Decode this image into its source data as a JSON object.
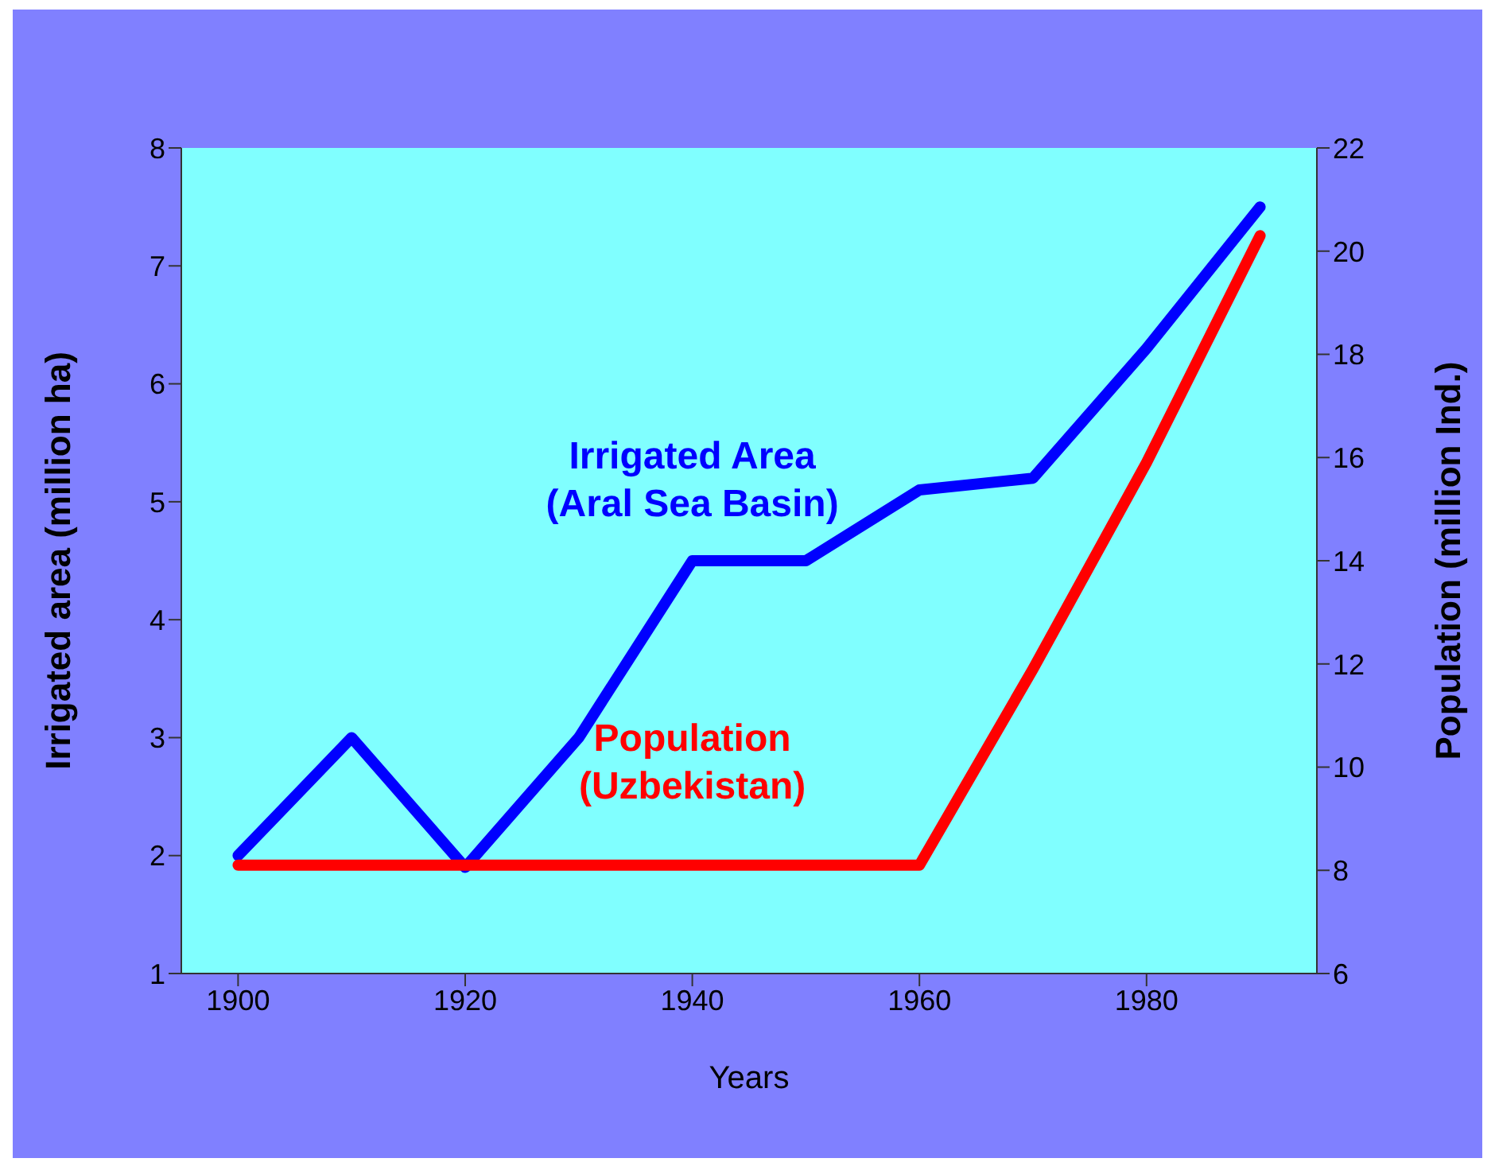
{
  "chart_data": {
    "type": "line",
    "xlabel": "Years",
    "ylabel": "Irrigated area (million ha)",
    "y2label": "Population (million Ind.)",
    "x": [
      1900,
      1910,
      1920,
      1930,
      1940,
      1950,
      1960,
      1970,
      1980,
      1990
    ],
    "series": [
      {
        "name": "Irrigated Area (Aral Sea Basin)",
        "color": "#0000ff",
        "values": [
          2.0,
          3.0,
          1.9,
          3.0,
          4.5,
          4.5,
          5.1,
          5.2,
          6.3,
          7.5
        ]
      },
      {
        "name": "Population (Uzbekistan)",
        "color": "#ff0000",
        "axis": "y2",
        "values": [
          8.1,
          8.1,
          8.1,
          8.1,
          8.1,
          8.1,
          8.1,
          11.9,
          15.9,
          20.3
        ]
      }
    ],
    "xlim": [
      1895,
      1995
    ],
    "xticks": [
      1900,
      1920,
      1940,
      1960,
      1980
    ],
    "ylim": [
      1,
      8
    ],
    "yticks": [
      1,
      2,
      3,
      4,
      5,
      6,
      7,
      8
    ],
    "y2lim": [
      6,
      22
    ],
    "y2ticks": [
      6,
      8,
      10,
      12,
      14,
      16,
      18,
      20,
      22
    ],
    "grid": false,
    "legend": false,
    "marker": "none",
    "line_style": "solid"
  }
}
